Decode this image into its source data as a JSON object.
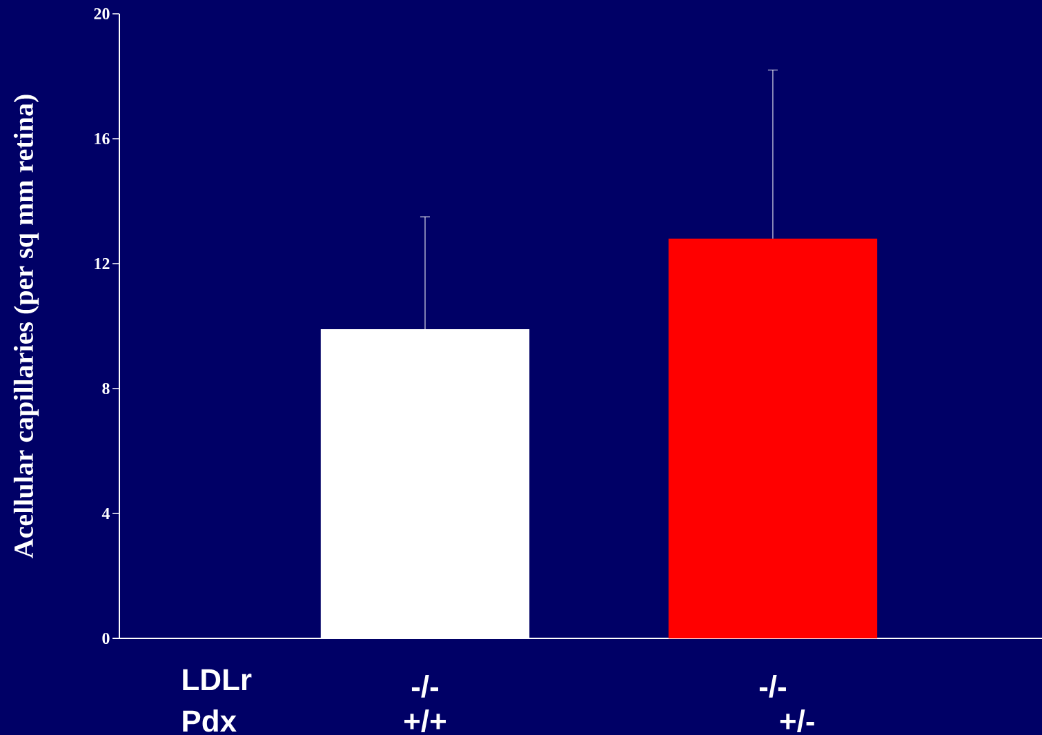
{
  "chart_data": {
    "type": "bar",
    "ylabel": "Acellular capillaries (per sq mm retina)",
    "categories": [
      "-/-",
      "-/-"
    ],
    "values": [
      9.9,
      12.8
    ],
    "colors": [
      "#ffffff",
      "#ff0000"
    ],
    "errors": [
      [
        9.9,
        13.5
      ],
      [
        12.8,
        18.2
      ]
    ],
    "ylim": [
      0,
      20
    ],
    "yticks": [
      0,
      4,
      8,
      12,
      16,
      20
    ],
    "annotations": [
      "LDLr",
      "Pdx",
      "+/+",
      "+/-"
    ]
  }
}
